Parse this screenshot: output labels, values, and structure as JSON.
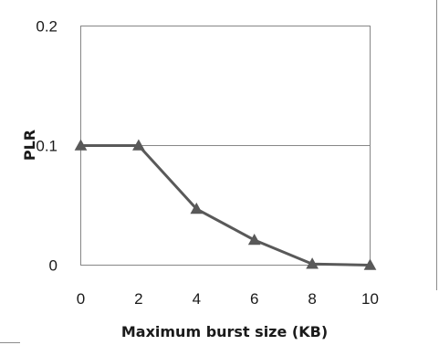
{
  "chart_data": {
    "type": "line",
    "title": "",
    "xlabel": "Maximum burst size (KB)",
    "ylabel": "PLR",
    "x": [
      0,
      2,
      4,
      6,
      8,
      10
    ],
    "xticks": [
      "0",
      "2",
      "4",
      "6",
      "8",
      "10"
    ],
    "yticks": [
      "0",
      "0.1",
      "0.2"
    ],
    "xlim": [
      0,
      10
    ],
    "ylim": [
      0,
      0.2
    ],
    "grid": "horizontal major gridlines at y ticks",
    "legend": "none",
    "series": [
      {
        "values": [
          0.1,
          0.1,
          0.047,
          0.021,
          0.001,
          0.0
        ],
        "color": "#595959",
        "marker": "triangle"
      }
    ],
    "colors": {
      "line": "#595959",
      "marker": "#595959",
      "grid": "#868686",
      "plot_border": "#868686",
      "outer_border": "#8c8c8c"
    }
  }
}
